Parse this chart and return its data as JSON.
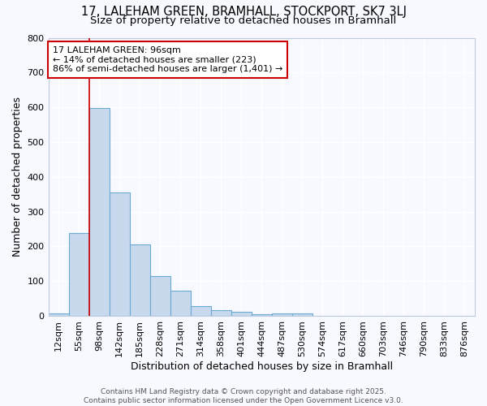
{
  "title1": "17, LALEHAM GREEN, BRAMHALL, STOCKPORT, SK7 3LJ",
  "title2": "Size of property relative to detached houses in Bramhall",
  "xlabel": "Distribution of detached houses by size in Bramhall",
  "ylabel": "Number of detached properties",
  "bar_values": [
    8,
    238,
    597,
    355,
    205,
    115,
    72,
    27,
    17,
    12,
    5,
    6,
    8,
    0,
    0,
    0,
    0,
    0,
    0,
    0,
    0
  ],
  "bar_labels": [
    "12sqm",
    "55sqm",
    "98sqm",
    "142sqm",
    "185sqm",
    "228sqm",
    "271sqm",
    "314sqm",
    "358sqm",
    "401sqm",
    "444sqm",
    "487sqm",
    "530sqm",
    "574sqm",
    "617sqm",
    "660sqm",
    "703sqm",
    "746sqm",
    "790sqm",
    "833sqm",
    "876sqm"
  ],
  "bar_color": "#c8d9ed",
  "bar_edge_color": "#6aaad4",
  "ylim": [
    0,
    800
  ],
  "yticks": [
    0,
    100,
    200,
    300,
    400,
    500,
    600,
    700,
    800
  ],
  "red_line_index": 2,
  "annotation_text": "17 LALEHAM GREEN: 96sqm\n← 14% of detached houses are smaller (223)\n86% of semi-detached houses are larger (1,401) →",
  "annotation_box_color": "#ffffff",
  "annotation_border_color": "#cc0000",
  "footer1": "Contains HM Land Registry data © Crown copyright and database right 2025.",
  "footer2": "Contains public sector information licensed under the Open Government Licence v3.0.",
  "background_color": "#f8f9ff",
  "grid_color": "#ffffff",
  "title_fontsize": 10.5,
  "subtitle_fontsize": 9.5,
  "xlabel_fontsize": 9,
  "ylabel_fontsize": 9,
  "tick_fontsize": 8,
  "annotation_fontsize": 8,
  "footer_fontsize": 6.5
}
